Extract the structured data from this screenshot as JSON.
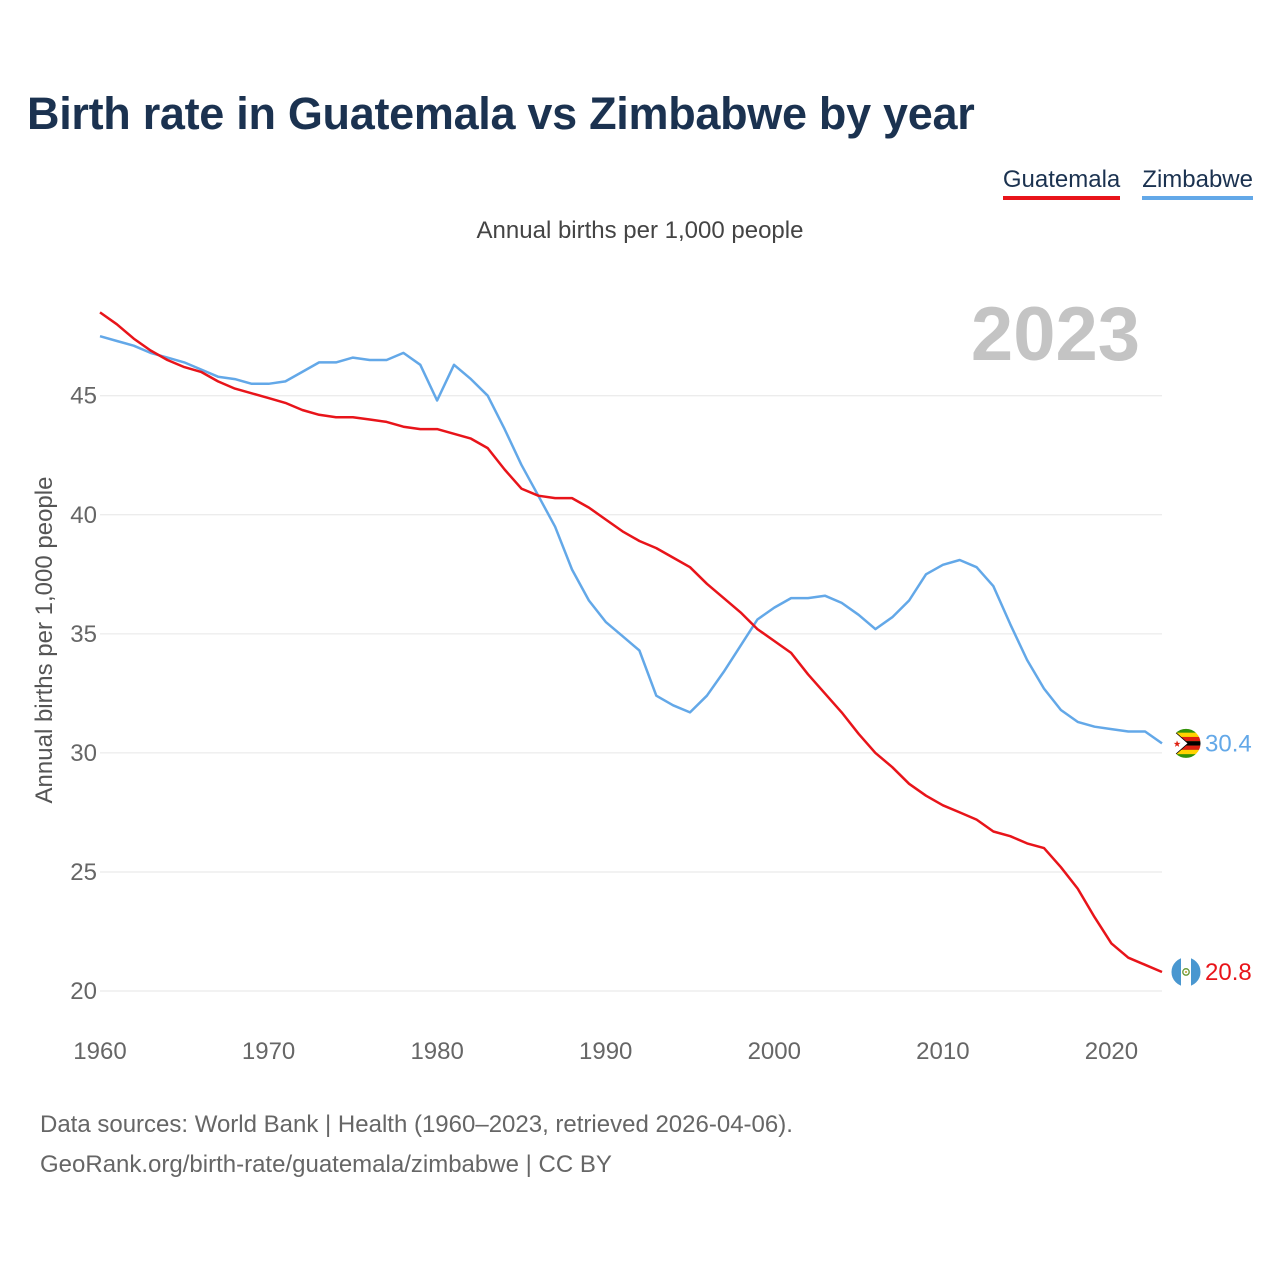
{
  "header": {
    "title": "Birth rate in Guatemala vs Zimbabwe by year",
    "subtitle": "Annual births per 1,000 people"
  },
  "legend": [
    {
      "name": "Guatemala",
      "color": "#e8141a"
    },
    {
      "name": "Zimbabwe",
      "color": "#63a8e8"
    }
  ],
  "footer": {
    "line1": "Data sources: World Bank | Health (1960–2023, retrieved 2026-04-06).",
    "line2": "GeoRank.org/birth-rate/guatemala/zimbabwe | CC BY"
  },
  "chart_data": {
    "type": "line",
    "title": "Birth rate in Guatemala vs Zimbabwe by year",
    "ylabel": "Annual births per 1,000 people",
    "xlabel": "",
    "year_label": "2023",
    "xlim": [
      1960,
      2023
    ],
    "ylim": [
      20,
      48.6
    ],
    "x_ticks": [
      1960,
      1970,
      1980,
      1990,
      2000,
      2010,
      2020
    ],
    "y_ticks": [
      20,
      25,
      30,
      35,
      40,
      45
    ],
    "grid": true,
    "series": [
      {
        "name": "Guatemala",
        "color": "#e8141a",
        "flag": "guatemala-flag",
        "end_label": "20.8",
        "x": [
          1960,
          1961,
          1962,
          1963,
          1964,
          1965,
          1966,
          1967,
          1968,
          1969,
          1970,
          1971,
          1972,
          1973,
          1974,
          1975,
          1976,
          1977,
          1978,
          1979,
          1980,
          1981,
          1982,
          1983,
          1984,
          1985,
          1986,
          1987,
          1988,
          1989,
          1990,
          1991,
          1992,
          1993,
          1994,
          1995,
          1996,
          1997,
          1998,
          1999,
          2000,
          2001,
          2002,
          2003,
          2004,
          2005,
          2006,
          2007,
          2008,
          2009,
          2010,
          2011,
          2012,
          2013,
          2014,
          2015,
          2016,
          2017,
          2018,
          2019,
          2020,
          2021,
          2022,
          2023
        ],
        "values": [
          48.5,
          48.0,
          47.4,
          46.9,
          46.5,
          46.2,
          46.0,
          45.6,
          45.3,
          45.1,
          44.9,
          44.7,
          44.4,
          44.2,
          44.1,
          44.1,
          44.0,
          43.9,
          43.7,
          43.6,
          43.6,
          43.4,
          43.2,
          42.8,
          41.9,
          41.1,
          40.8,
          40.7,
          40.7,
          40.3,
          39.8,
          39.3,
          38.9,
          38.6,
          38.2,
          37.8,
          37.1,
          36.5,
          35.9,
          35.2,
          34.7,
          34.2,
          33.3,
          32.5,
          31.7,
          30.8,
          30.0,
          29.4,
          28.7,
          28.2,
          27.8,
          27.5,
          27.2,
          26.7,
          26.5,
          26.2,
          26.0,
          25.2,
          24.3,
          23.1,
          22.0,
          21.4,
          21.1,
          20.8
        ]
      },
      {
        "name": "Zimbabwe",
        "color": "#63a8e8",
        "flag": "zimbabwe-flag",
        "end_label": "30.4",
        "x": [
          1960,
          1961,
          1962,
          1963,
          1964,
          1965,
          1966,
          1967,
          1968,
          1969,
          1970,
          1971,
          1972,
          1973,
          1974,
          1975,
          1976,
          1977,
          1978,
          1979,
          1980,
          1981,
          1982,
          1983,
          1984,
          1985,
          1986,
          1987,
          1988,
          1989,
          1990,
          1991,
          1992,
          1993,
          1994,
          1995,
          1996,
          1997,
          1998,
          1999,
          2000,
          2001,
          2002,
          2003,
          2004,
          2005,
          2006,
          2007,
          2008,
          2009,
          2010,
          2011,
          2012,
          2013,
          2014,
          2015,
          2016,
          2017,
          2018,
          2019,
          2020,
          2021,
          2022,
          2023
        ],
        "values": [
          47.5,
          47.3,
          47.1,
          46.8,
          46.6,
          46.4,
          46.1,
          45.8,
          45.7,
          45.5,
          45.5,
          45.6,
          46.0,
          46.4,
          46.4,
          46.6,
          46.5,
          46.5,
          46.8,
          46.3,
          44.8,
          46.3,
          45.7,
          45.0,
          43.6,
          42.1,
          40.8,
          39.5,
          37.7,
          36.4,
          35.5,
          34.9,
          34.3,
          32.4,
          32.0,
          31.7,
          32.4,
          33.4,
          34.5,
          35.6,
          36.1,
          36.5,
          36.5,
          36.6,
          36.3,
          35.8,
          35.2,
          35.7,
          36.4,
          37.5,
          37.9,
          38.1,
          37.8,
          37.0,
          35.4,
          33.9,
          32.7,
          31.8,
          31.3,
          31.1,
          31.0,
          30.9,
          30.9,
          30.4
        ]
      }
    ]
  }
}
